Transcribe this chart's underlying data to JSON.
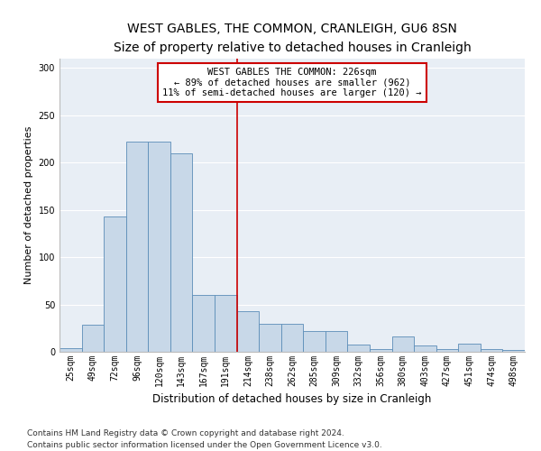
{
  "title": "WEST GABLES, THE COMMON, CRANLEIGH, GU6 8SN",
  "subtitle": "Size of property relative to detached houses in Cranleigh",
  "xlabel": "Distribution of detached houses by size in Cranleigh",
  "ylabel": "Number of detached properties",
  "bar_color": "#c8d8e8",
  "bar_edge_color": "#5b8db8",
  "background_color": "#e8eef5",
  "grid_color": "#ffffff",
  "categories": [
    "25sqm",
    "49sqm",
    "72sqm",
    "96sqm",
    "120sqm",
    "143sqm",
    "167sqm",
    "191sqm",
    "214sqm",
    "238sqm",
    "262sqm",
    "285sqm",
    "309sqm",
    "332sqm",
    "356sqm",
    "380sqm",
    "403sqm",
    "427sqm",
    "451sqm",
    "474sqm",
    "498sqm"
  ],
  "values": [
    4,
    29,
    143,
    222,
    222,
    210,
    60,
    60,
    43,
    30,
    30,
    22,
    22,
    8,
    3,
    16,
    7,
    3,
    9,
    3,
    2
  ],
  "vline_x": 7.5,
  "vline_color": "#cc0000",
  "box_edge_color": "#cc0000",
  "annotation_line1": "WEST GABLES THE COMMON: 226sqm",
  "annotation_line2": "← 89% of detached houses are smaller (962)",
  "annotation_line3": "11% of semi-detached houses are larger (120) →",
  "ylim": [
    0,
    310
  ],
  "yticks": [
    0,
    50,
    100,
    150,
    200,
    250,
    300
  ],
  "title_fontsize": 10,
  "subtitle_fontsize": 9,
  "xlabel_fontsize": 8.5,
  "ylabel_fontsize": 8,
  "tick_fontsize": 7,
  "annotation_fontsize": 7.5,
  "footer_fontsize": 6.5,
  "footer_line1": "Contains HM Land Registry data © Crown copyright and database right 2024.",
  "footer_line2": "Contains public sector information licensed under the Open Government Licence v3.0."
}
